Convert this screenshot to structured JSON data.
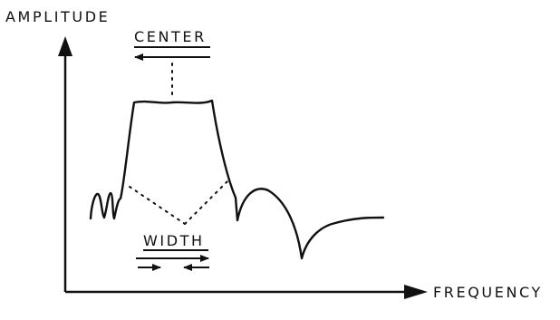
{
  "labels": {
    "y_axis": "AMPLITUDE",
    "x_axis": "FREQUENCY",
    "center": "CENTER",
    "width": "WIDTH"
  },
  "colors": {
    "ink": "#111111",
    "background": "#ffffff"
  }
}
